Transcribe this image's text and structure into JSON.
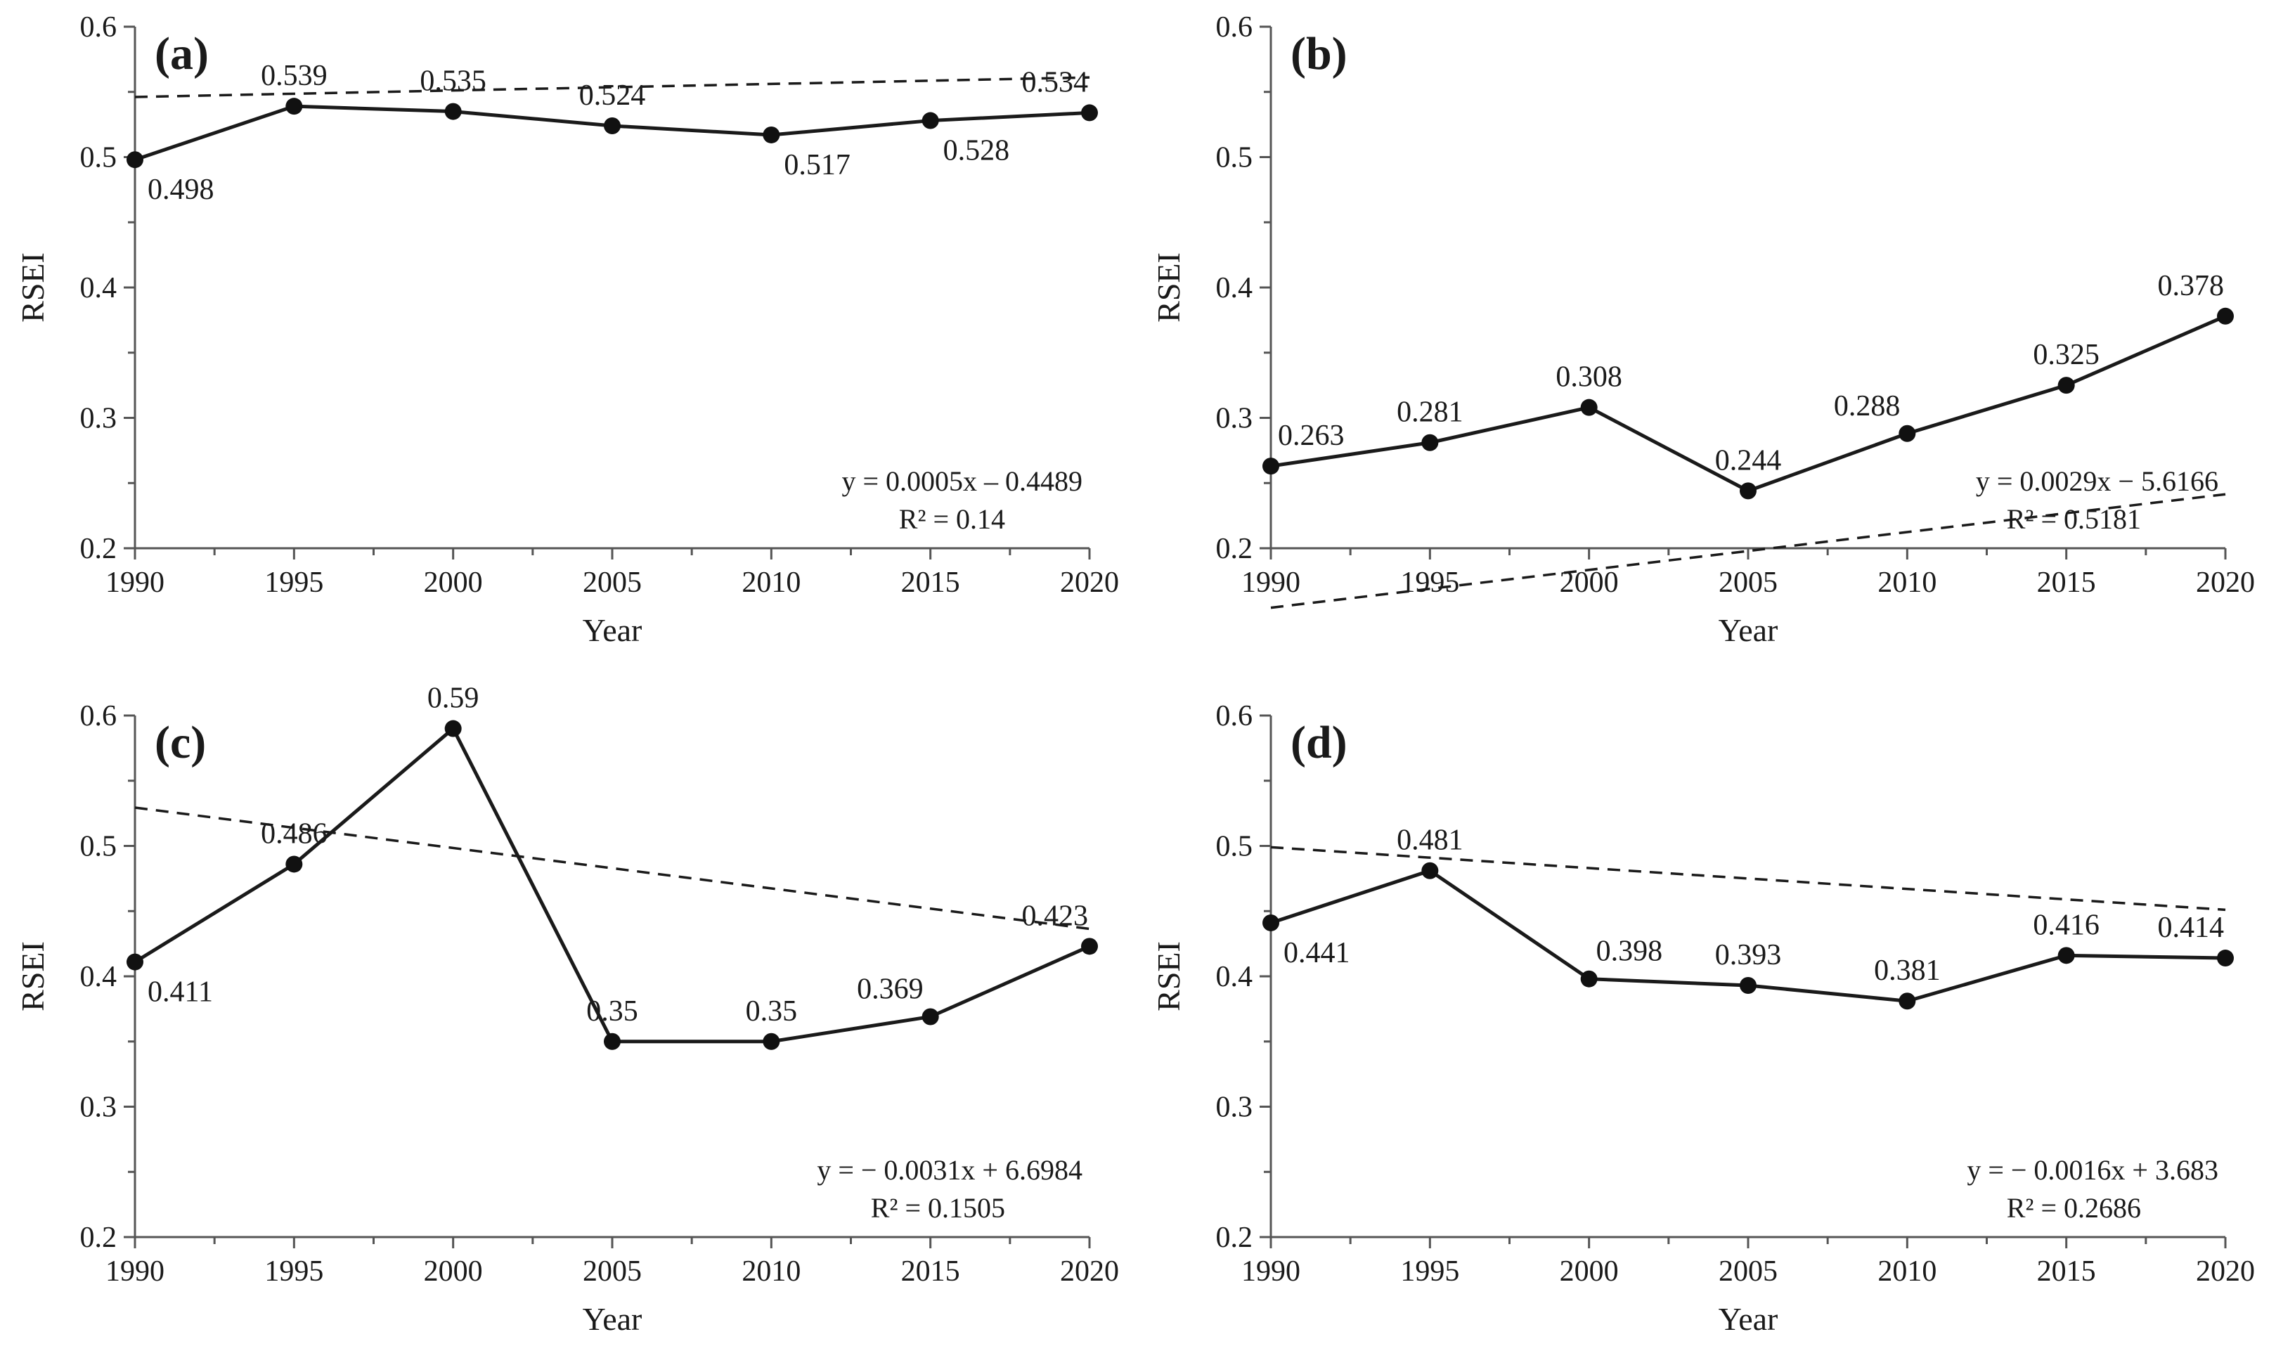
{
  "chart_data": [
    {
      "type": "line",
      "panel": "(a)",
      "xlabel": "Year",
      "ylabel": "RSEI",
      "x": [
        1990,
        1995,
        2000,
        2005,
        2010,
        2015,
        2020
      ],
      "values": [
        0.498,
        0.539,
        0.535,
        0.524,
        0.517,
        0.528,
        0.534
      ],
      "value_labels": [
        "0.498",
        "0.539",
        "0.535",
        "0.524",
        "0.517",
        "0.528",
        "0.534"
      ],
      "xlim": [
        1990,
        2020
      ],
      "ylim": [
        0.2,
        0.6
      ],
      "x_ticks": [
        "1990",
        "1995",
        "2000",
        "2005",
        "2010",
        "2015",
        "2020"
      ],
      "y_ticks": [
        "0.2",
        "0.3",
        "0.4",
        "0.5",
        "0.6"
      ],
      "trendline": {
        "slope": 0.0005,
        "intercept": -0.4489,
        "equation": "y = 0.0005x – 0.4489",
        "r2": "R² = 0.14"
      },
      "label_pos": [
        "below",
        "above",
        "above",
        "above",
        "below",
        "below",
        "above"
      ],
      "eq_pos": "bottom-right"
    },
    {
      "type": "line",
      "panel": "(b)",
      "xlabel": "Year",
      "ylabel": "RSEI",
      "x": [
        1990,
        1995,
        2000,
        2005,
        2010,
        2015,
        2020
      ],
      "values": [
        0.263,
        0.281,
        0.308,
        0.244,
        0.288,
        0.325,
        0.378
      ],
      "value_labels": [
        "0.263",
        "0.281",
        "0.308",
        "0.244",
        "0.288",
        "0.325",
        "0.378"
      ],
      "xlim": [
        1990,
        2020
      ],
      "ylim": [
        0.2,
        0.6
      ],
      "x_ticks": [
        "1990",
        "1995",
        "2000",
        "2005",
        "2010",
        "2015",
        "2020"
      ],
      "y_ticks": [
        "0.2",
        "0.3",
        "0.4",
        "0.5",
        "0.6"
      ],
      "trendline": {
        "slope": 0.0029,
        "intercept": -5.6166,
        "equation": "y = 0.0029x − 5.6166",
        "r2": "R² = 0.5181"
      },
      "label_pos": [
        "above",
        "above",
        "above",
        "above",
        "above-left",
        "above",
        "above"
      ],
      "eq_pos": "bottom-right"
    },
    {
      "type": "line",
      "panel": "(c)",
      "xlabel": "Year",
      "ylabel": "RSEI",
      "x": [
        1990,
        1995,
        2000,
        2005,
        2010,
        2015,
        2020
      ],
      "values": [
        0.411,
        0.486,
        0.59,
        0.35,
        0.35,
        0.369,
        0.423
      ],
      "value_labels": [
        "0.411",
        "0.486",
        "0.59",
        "0.35",
        "0.35",
        "0.369",
        "0.423"
      ],
      "xlim": [
        1990,
        2020
      ],
      "ylim": [
        0.2,
        0.6
      ],
      "x_ticks": [
        "1990",
        "1995",
        "2000",
        "2005",
        "2010",
        "2015",
        "2020"
      ],
      "y_ticks": [
        "0.2",
        "0.3",
        "0.4",
        "0.5",
        "0.6"
      ],
      "trendline": {
        "slope": -0.0031,
        "intercept": 6.6984,
        "equation": "y = − 0.0031x + 6.6984",
        "r2": "R² = 0.1505"
      },
      "label_pos": [
        "below",
        "above",
        "above",
        "above",
        "above",
        "above-left",
        "above"
      ],
      "eq_pos": "bottom-right"
    },
    {
      "type": "line",
      "panel": "(d)",
      "xlabel": "Year",
      "ylabel": "RSEI",
      "x": [
        1990,
        1995,
        2000,
        2005,
        2010,
        2015,
        2020
      ],
      "values": [
        0.441,
        0.481,
        0.398,
        0.393,
        0.381,
        0.416,
        0.414
      ],
      "value_labels": [
        "0.441",
        "0.481",
        "0.398",
        "0.393",
        "0.381",
        "0.416",
        "0.414"
      ],
      "xlim": [
        1990,
        2020
      ],
      "ylim": [
        0.2,
        0.6
      ],
      "x_ticks": [
        "1990",
        "1995",
        "2000",
        "2005",
        "2010",
        "2015",
        "2020"
      ],
      "y_ticks": [
        "0.2",
        "0.3",
        "0.4",
        "0.5",
        "0.6"
      ],
      "trendline": {
        "slope": -0.0016,
        "intercept": 3.683,
        "equation": "y = − 0.0016x + 3.683",
        "r2": "R² = 0.2686"
      },
      "label_pos": [
        "below",
        "above",
        "above-right",
        "above",
        "above",
        "above",
        "above"
      ],
      "eq_pos": "bottom-right"
    }
  ]
}
